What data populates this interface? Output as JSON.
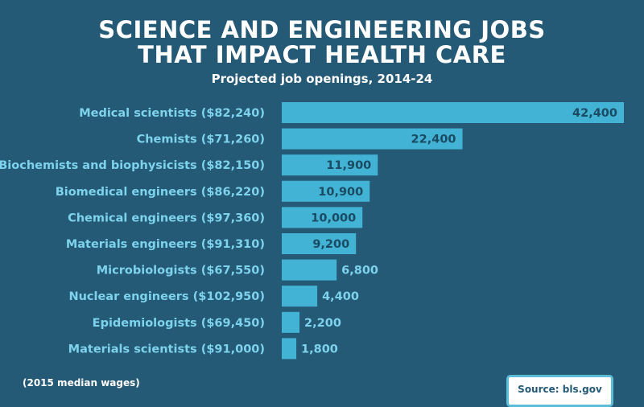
{
  "header": {
    "title_line1": "SCIENCE AND ENGINEERING JOBS",
    "title_line2": "THAT IMPACT HEALTH CARE",
    "subtitle": "Projected job openings, 2014-24"
  },
  "footer": {
    "note": "(2015 median wages)",
    "source": "Source: bls.gov"
  },
  "colors": {
    "background": "#255a77",
    "bar": "#42b3d4",
    "label": "#7dd3ec",
    "value_inside": "#1b4b63",
    "value_outside": "#7dd3ec"
  },
  "chart_data": {
    "type": "bar",
    "orientation": "horizontal",
    "title": "SCIENCE AND ENGINEERING JOBS THAT IMPACT HEALTH CARE",
    "subtitle": "Projected job openings, 2014-24",
    "categories": [
      "Medical scientists ($82,240)",
      "Chemists ($71,260)",
      "Biochemists and biophysicists ($82,150)",
      "Biomedical engineers ($86,220)",
      "Chemical engineers ($97,360)",
      "Materials engineers ($91,310)",
      "Microbiologists ($67,550)",
      "Nuclear engineers ($102,950)",
      "Epidemiologists ($69,450)",
      "Materials scientists ($91,000)"
    ],
    "values": [
      42400,
      22400,
      11900,
      10900,
      10000,
      9200,
      6800,
      4400,
      2200,
      1800
    ],
    "value_labels": [
      "42,400",
      "22,400",
      "11,900",
      "10,900",
      "10,000",
      "9,200",
      "6,800",
      "4,400",
      "2,200",
      "1,800"
    ],
    "xlim": [
      0,
      42400
    ],
    "grid": false,
    "legend": "none"
  }
}
